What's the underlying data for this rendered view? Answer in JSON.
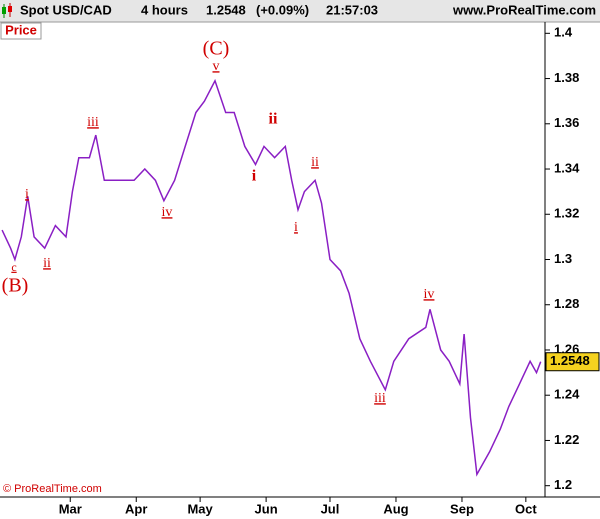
{
  "header": {
    "symbol": "Spot USD/CAD",
    "timeframe": "4 hours",
    "last": "1.2548",
    "change": "(+0.09%)",
    "time": "21:57:03",
    "site": "www.ProRealTime.com"
  },
  "panel_label": "Price",
  "copyright": "© ProRealTime.com",
  "chart_data": {
    "type": "line",
    "x": [
      28,
      32,
      34,
      37,
      40,
      43,
      48,
      53,
      58,
      61,
      64,
      69,
      72,
      76,
      83,
      90,
      95,
      100,
      104,
      109,
      114,
      119,
      123,
      128,
      133,
      137,
      142,
      147,
      151,
      156,
      161,
      164,
      167,
      170,
      175,
      178,
      182,
      187,
      191,
      196,
      201,
      208,
      212,
      219,
      227,
      229,
      234,
      238,
      243,
      245,
      248,
      251,
      257,
      262,
      266,
      271,
      276,
      279,
      281
    ],
    "series": [
      {
        "name": "Spot USD/CAD",
        "color": "#8a1fc4",
        "values": [
          1.313,
          1.305,
          1.3,
          1.31,
          1.328,
          1.31,
          1.305,
          1.315,
          1.31,
          1.33,
          1.345,
          1.345,
          1.355,
          1.335,
          1.335,
          1.335,
          1.34,
          1.335,
          1.326,
          1.335,
          1.35,
          1.365,
          1.37,
          1.379,
          1.365,
          1.365,
          1.35,
          1.342,
          1.35,
          1.345,
          1.35,
          1.335,
          1.322,
          1.33,
          1.335,
          1.325,
          1.3,
          1.295,
          1.285,
          1.265,
          1.255,
          1.2424,
          1.255,
          1.265,
          1.27,
          1.278,
          1.26,
          1.255,
          1.245,
          1.267,
          1.23,
          1.205,
          1.215,
          1.225,
          1.235,
          1.245,
          1.255,
          1.25,
          1.2548
        ]
      }
    ],
    "last_value": 1.2548,
    "xlim": [
      27,
      283
    ],
    "xticks": [
      {
        "value": 60,
        "label": "Mar"
      },
      {
        "value": 91,
        "label": "Apr"
      },
      {
        "value": 121,
        "label": "May"
      },
      {
        "value": 152,
        "label": "Jun"
      },
      {
        "value": 182,
        "label": "Jul"
      },
      {
        "value": 213,
        "label": "Aug"
      },
      {
        "value": 244,
        "label": "Sep"
      },
      {
        "value": 274,
        "label": "Oct"
      }
    ],
    "ylim": [
      1.195,
      1.405
    ],
    "yticks": [
      1.2,
      1.22,
      1.24,
      1.26,
      1.28,
      1.3,
      1.32,
      1.34,
      1.36,
      1.38,
      1.4
    ],
    "annotations": [
      "c",
      "(B)",
      "i",
      "ii",
      "iii",
      "iv",
      "(C)",
      "v",
      "ii",
      "i",
      "ii",
      "i",
      "iv",
      "iii"
    ]
  }
}
